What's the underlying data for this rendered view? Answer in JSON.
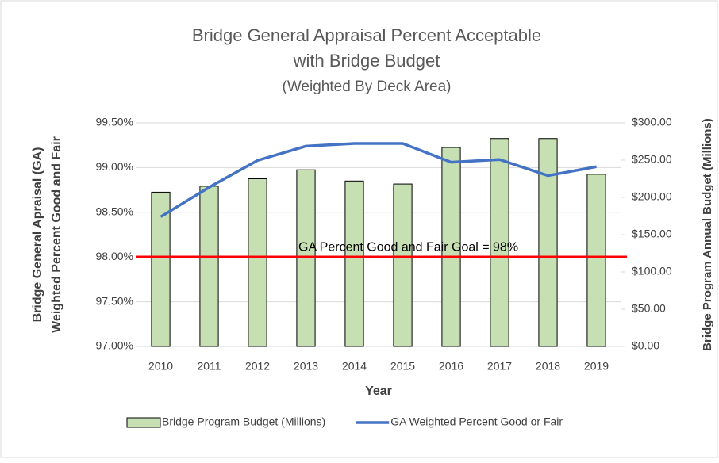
{
  "chart_data": {
    "type": "combo",
    "title": [
      "Bridge General Appraisal Percent Acceptable",
      "with Bridge Budget"
    ],
    "subtitle": "(Weighted By Deck Area)",
    "x_label": "Year",
    "y_label": [
      "Bridge General Apraisal (GA)",
      "Weighted Percent Good and Fair"
    ],
    "y2_label": "Bridge Program Annual Budget (Millions)",
    "categories": [
      "2010",
      "2011",
      "2012",
      "2013",
      "2014",
      "2015",
      "2016",
      "2017",
      "2018",
      "2019"
    ],
    "series": [
      {
        "name": "Bridge Program Budget (Millions)",
        "type": "bar",
        "axis": "y2",
        "color": "#c6e0b4",
        "values": [
          207,
          215,
          225,
          237,
          222,
          218,
          267,
          279,
          279,
          231
        ]
      },
      {
        "name": "GA Weighted Percent Good or Fair",
        "type": "line",
        "axis": "y",
        "color": "#4472c4",
        "values": [
          98.45,
          98.78,
          99.08,
          99.24,
          99.27,
          99.27,
          99.06,
          99.09,
          98.91,
          99.01
        ]
      }
    ],
    "reference_lines": [
      {
        "value": 98,
        "label": "GA Percent Good and Fair Goal = 98%",
        "color": "#ff0000"
      }
    ],
    "ylim": [
      97,
      99.5
    ],
    "yticks": [
      {
        "value": 97,
        "label": "97.00%"
      },
      {
        "value": 97.5,
        "label": "97.50%"
      },
      {
        "value": 98,
        "label": "98.00%"
      },
      {
        "value": 98.5,
        "label": "98.50%"
      },
      {
        "value": 99,
        "label": "99.00%"
      },
      {
        "value": 99.5,
        "label": "99.50%"
      }
    ],
    "y2lim": [
      0,
      300
    ],
    "y2ticks": [
      {
        "value": 0,
        "label": "$0.00"
      },
      {
        "value": 50,
        "label": "$50.00"
      },
      {
        "value": 100,
        "label": "$100.00"
      },
      {
        "value": 150,
        "label": "$150.00"
      },
      {
        "value": 200,
        "label": "$200.00"
      },
      {
        "value": 250,
        "label": "$250.00"
      },
      {
        "value": 300,
        "label": "$300.00"
      }
    ],
    "legend": "bottom"
  }
}
